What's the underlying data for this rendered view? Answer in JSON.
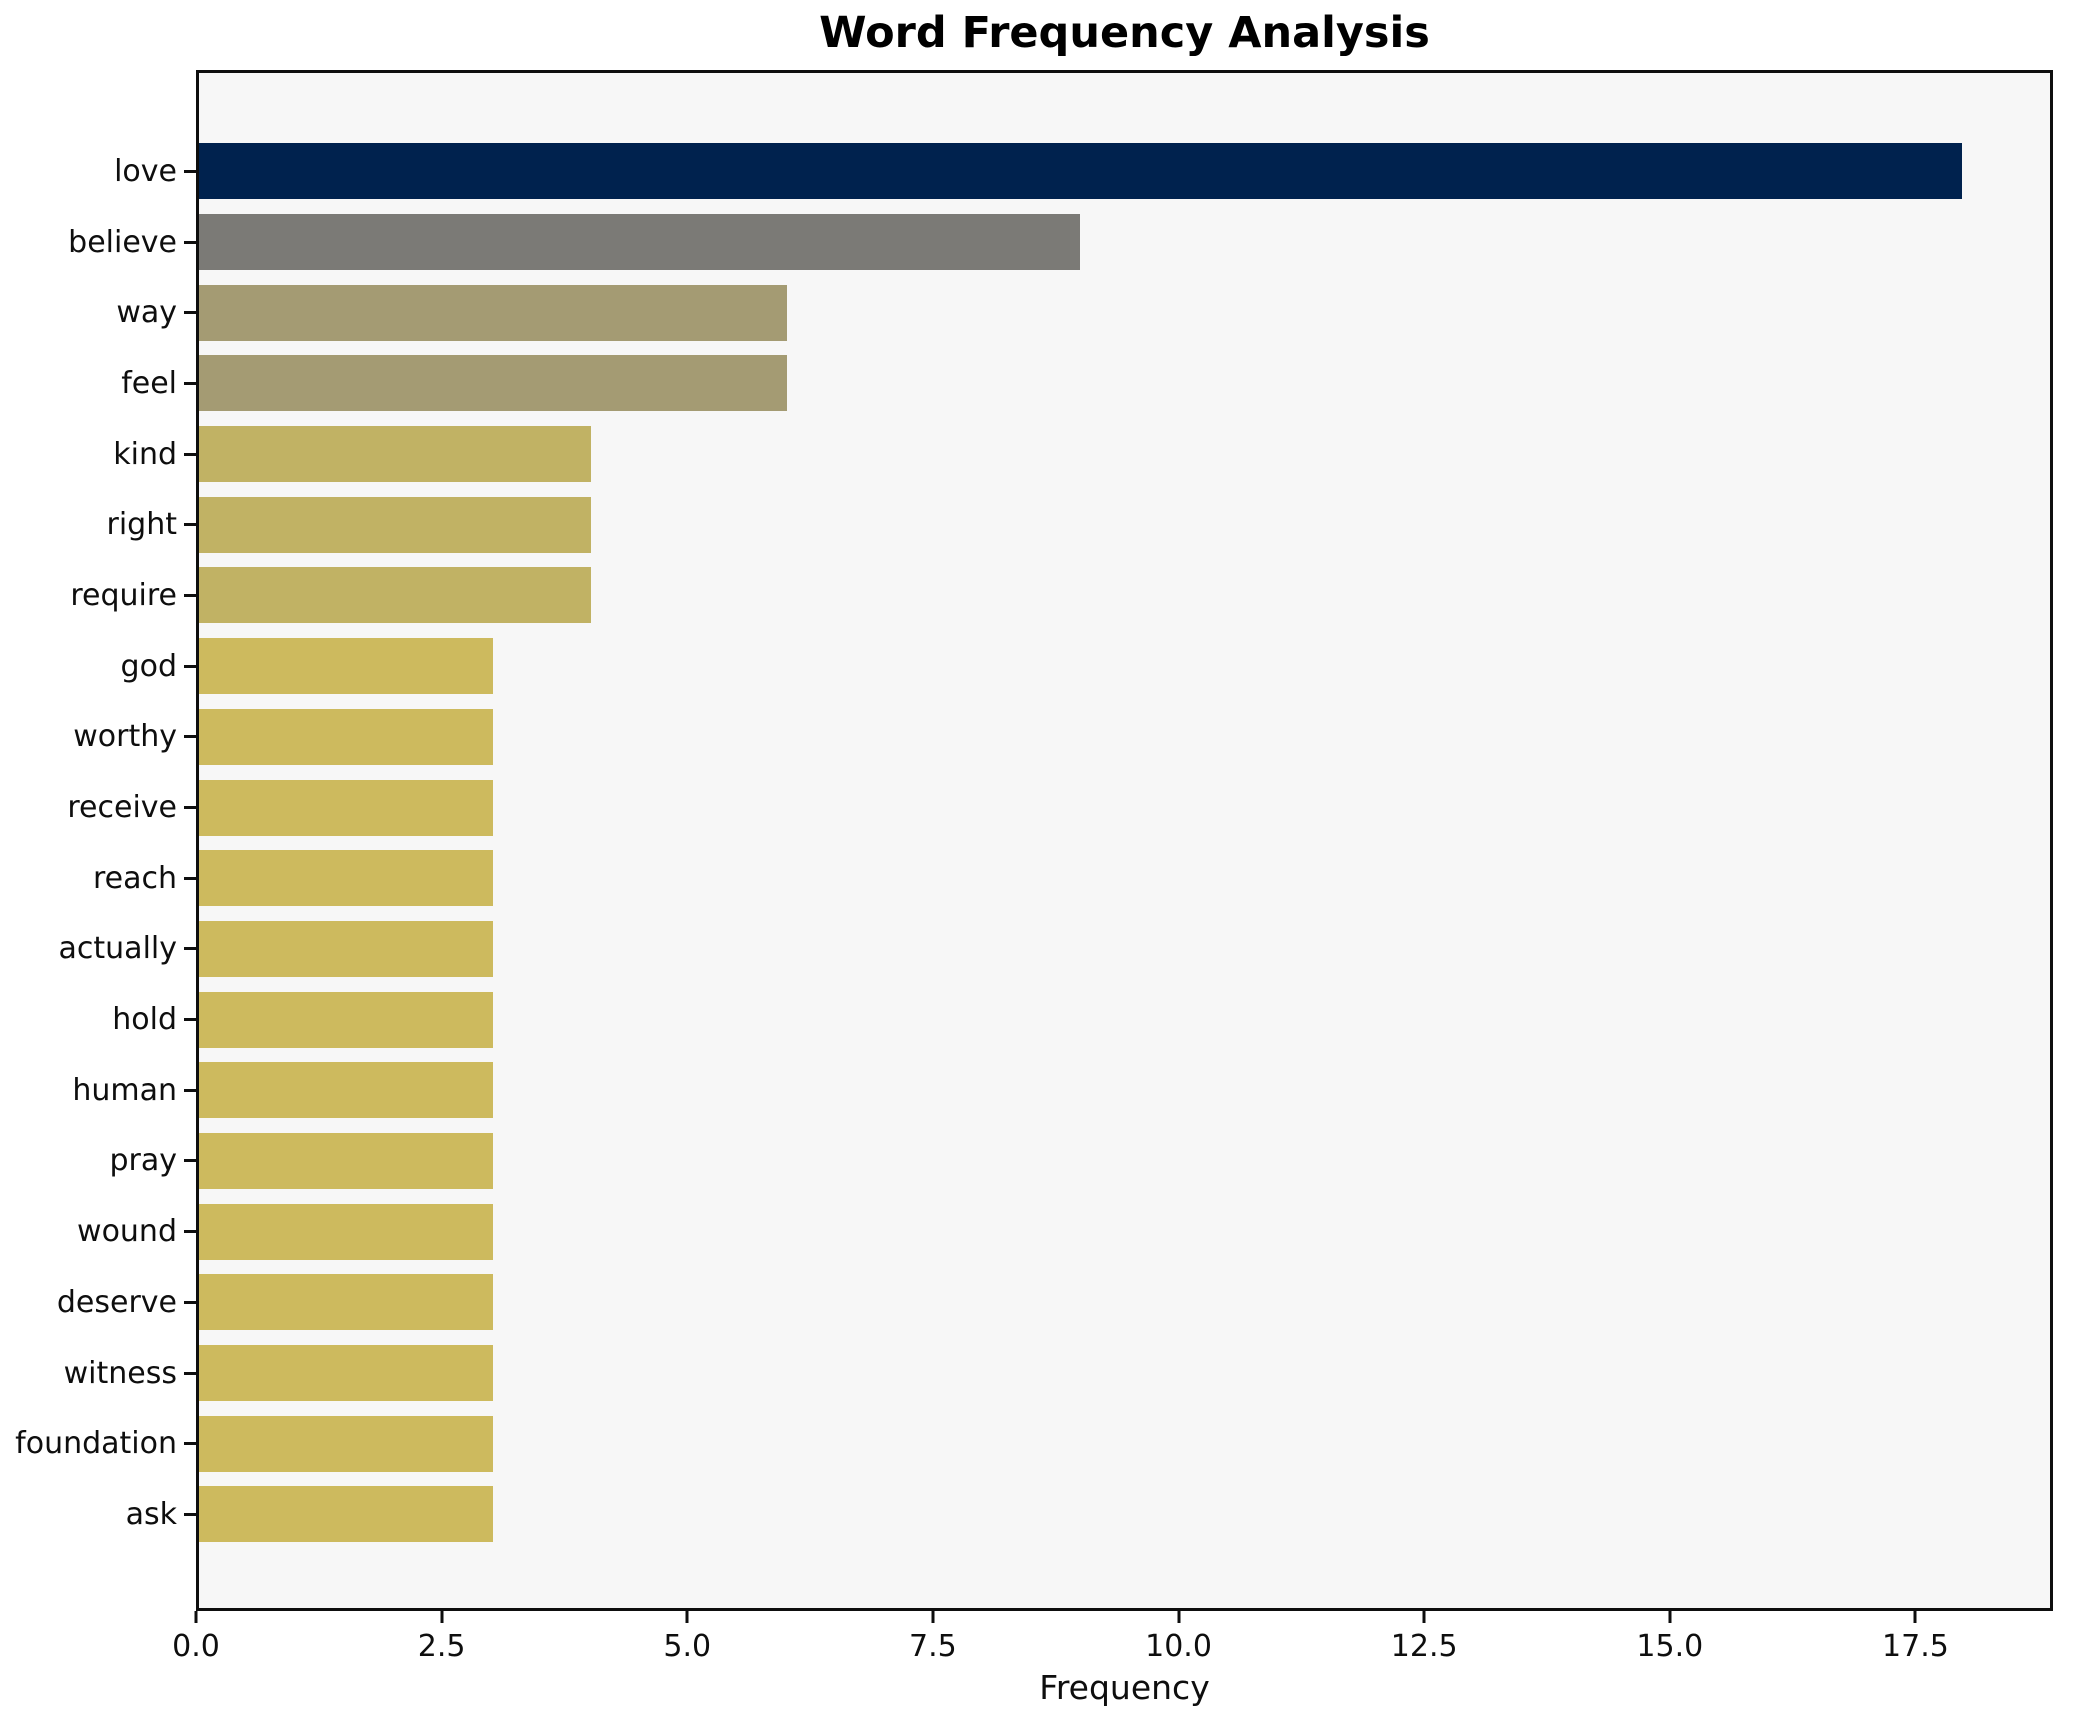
{
  "chart_data": {
    "type": "bar",
    "orientation": "horizontal",
    "title": "Word Frequency Analysis",
    "xlabel": "Frequency",
    "ylabel": "",
    "xlim": [
      0,
      18.9
    ],
    "x_ticks": [
      0,
      2.5,
      5,
      7.5,
      10,
      12.5,
      15,
      17.5
    ],
    "x_tick_labels": [
      "0.0",
      "2.5",
      "5.0",
      "7.5",
      "10.0",
      "12.5",
      "15.0",
      "17.5"
    ],
    "grid": false,
    "legend": "none",
    "plot_background": "#f7f7f7",
    "spine_color": "#0e0e0e",
    "categories": [
      "love",
      "believe",
      "way",
      "feel",
      "kind",
      "right",
      "require",
      "god",
      "worthy",
      "receive",
      "reach",
      "actually",
      "hold",
      "human",
      "pray",
      "wound",
      "deserve",
      "witness",
      "foundation",
      "ask"
    ],
    "values": [
      18,
      9,
      6,
      6,
      4,
      4,
      4,
      3,
      3,
      3,
      3,
      3,
      3,
      3,
      3,
      3,
      3,
      3,
      3,
      3
    ],
    "bar_colors": [
      "#00224e",
      "#7b7a76",
      "#a49b73",
      "#a49b73",
      "#c1b264",
      "#c1b264",
      "#c1b264",
      "#cdba5e",
      "#cdba5e",
      "#cdba5e",
      "#cdba5e",
      "#cdba5e",
      "#cdba5e",
      "#cdba5e",
      "#cdba5e",
      "#cdba5e",
      "#cdba5e",
      "#cdba5e",
      "#cdba5e",
      "#cdba5e"
    ]
  }
}
